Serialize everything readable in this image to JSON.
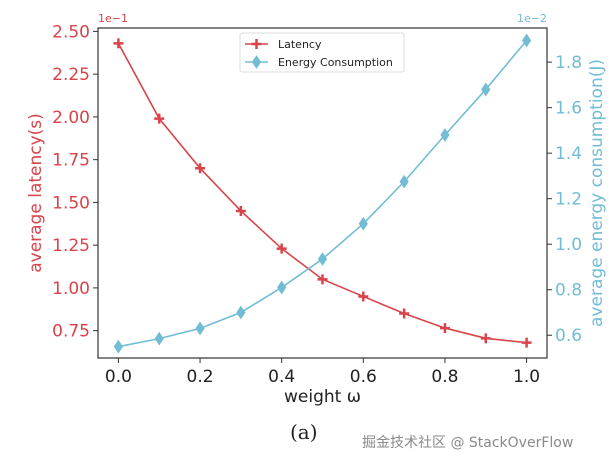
{
  "chart_data": {
    "type": "line",
    "caption": "(a)",
    "xlabel": "weight ω",
    "x": [
      0.0,
      0.1,
      0.2,
      0.3,
      0.4,
      0.5,
      0.6,
      0.7,
      0.8,
      0.9,
      1.0
    ],
    "xlim": [
      -0.05,
      1.05
    ],
    "xticks": [
      "0.0",
      "0.2",
      "0.4",
      "0.6",
      "0.8",
      "1.0"
    ],
    "grid": false,
    "legend_position": "top-center",
    "left_axis": {
      "label": "average latency(s)",
      "offset_text": "1e−1",
      "ylim": [
        0.59,
        2.52
      ],
      "ticks": [
        "0.75",
        "1.00",
        "1.25",
        "1.50",
        "1.75",
        "2.00",
        "2.25",
        "2.50"
      ],
      "color": "#d9434a"
    },
    "right_axis": {
      "label": "average energy consumption(J)",
      "offset_text": "1e−2",
      "ylim": [
        0.5,
        1.95
      ],
      "ticks": [
        "0.6",
        "0.8",
        "1.0",
        "1.2",
        "1.4",
        "1.6",
        "1.8"
      ],
      "color": "#72bcd5"
    },
    "series": [
      {
        "name": "Latency",
        "axis": "left",
        "marker": "plus",
        "color": "#d9434a",
        "values": [
          2.43,
          1.99,
          1.7,
          1.45,
          1.23,
          1.05,
          0.95,
          0.85,
          0.765,
          0.705,
          0.68
        ]
      },
      {
        "name": "Energy Consumption",
        "axis": "right",
        "marker": "diamond",
        "color": "#72bcd5",
        "values": [
          0.55,
          0.585,
          0.63,
          0.7,
          0.81,
          0.935,
          1.09,
          1.275,
          1.48,
          1.68,
          1.895
        ]
      }
    ]
  },
  "watermark": "掘金技术社区 @ StackOverFlow"
}
